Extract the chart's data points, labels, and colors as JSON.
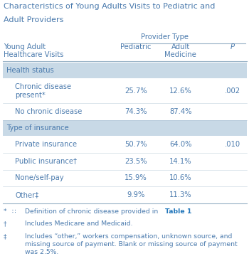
{
  "title_line1": "Characteristics of Young Adults Visits to Pediatric and",
  "title_line2": "Adult Providers",
  "header_group": "Provider Type",
  "col_headers_row1": [
    "",
    "",
    "Adult",
    ""
  ],
  "col_headers_row2": [
    "Young Adult\nHealthcare Visits",
    "Pediatric",
    "Medicine",
    "P"
  ],
  "section_rows": [
    {
      "label": "Health status",
      "pediatric": "",
      "adult": "",
      "p": "",
      "is_section": true
    },
    {
      "label": "Chronic disease\npresent*",
      "pediatric": "25.7%",
      "adult": "12.6%",
      "p": ".002",
      "is_section": false,
      "two_line": true
    },
    {
      "label": "No chronic disease",
      "pediatric": "74.3%",
      "adult": "87.4%",
      "p": "",
      "is_section": false,
      "two_line": false
    },
    {
      "label": "Type of insurance",
      "pediatric": "",
      "adult": "",
      "p": "",
      "is_section": true
    },
    {
      "label": "Private insurance",
      "pediatric": "50.7%",
      "adult": "64.0%",
      "p": ".010",
      "is_section": false,
      "two_line": false
    },
    {
      "label": "Public insurance†",
      "pediatric": "23.5%",
      "adult": "14.1%",
      "p": "",
      "is_section": false,
      "two_line": false
    },
    {
      "label": "None/self-pay",
      "pediatric": "15.9%",
      "adult": "10.6%",
      "p": "",
      "is_section": false,
      "two_line": false
    },
    {
      "label": "Other‡",
      "pediatric": "9.9%",
      "adult": "11.3%",
      "p": "",
      "is_section": false,
      "two_line": false
    }
  ],
  "footnotes": [
    {
      "symbol": "*",
      "extra": "∷",
      "text_before": "Definition of chronic disease provided in ",
      "link": "Table 1",
      "text_after": "."
    },
    {
      "symbol": "†",
      "text": "Includes Medicare and Medicaid."
    },
    {
      "symbol": "‡",
      "text": "Includes “other,” workers compensation, unknown source, and\nmissing source of payment. Blank or missing source of payment\nwas 2.5%."
    }
  ],
  "text_color": "#4a7aad",
  "section_bg": "#c8d9e6",
  "bg_color": "#ffffff",
  "line_color": "#9bb4c8",
  "font_size": 7.2,
  "title_font_size": 8.0
}
